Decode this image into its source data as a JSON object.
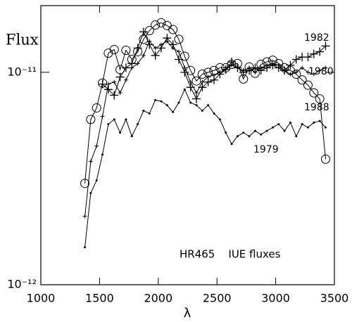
{
  "chart_data": {
    "type": "line",
    "y_label": "Flux",
    "x_label": "λ",
    "annotation": "HR465    IUE fluxes",
    "log_y": true,
    "color": "#000000",
    "xlim": [
      1000,
      3500
    ],
    "xticks": [
      1000,
      1500,
      2000,
      2500,
      3000,
      3500
    ],
    "ylim": [
      1e-12,
      2.06e-11
    ],
    "yticks": [
      {
        "value": 1e-12,
        "label": "10⁻¹²"
      },
      {
        "value": 1e-11,
        "label": "10⁻¹¹"
      }
    ],
    "x": [
      1375,
      1425,
      1475,
      1525,
      1575,
      1625,
      1675,
      1725,
      1775,
      1825,
      1875,
      1925,
      1975,
      2025,
      2075,
      2125,
      2175,
      2225,
      2275,
      2325,
      2375,
      2425,
      2475,
      2525,
      2575,
      2625,
      2675,
      2725,
      2775,
      2825,
      2875,
      2925,
      2975,
      3025,
      3075,
      3125,
      3175,
      3225,
      3275,
      3325,
      3375,
      3425
    ],
    "series": [
      {
        "name": "1982",
        "marker": "plus",
        "color": "#000000",
        "values": [
          null,
          null,
          null,
          8.8e-12,
          8.3e-12,
          7.8e-12,
          9.5e-12,
          1.05e-11,
          1.1e-11,
          1.3e-11,
          1.55e-11,
          1.35e-11,
          1.2e-11,
          1.3e-11,
          1.45e-11,
          1.35e-11,
          1.15e-11,
          1e-11,
          8.5e-12,
          7.5e-12,
          8.5e-12,
          9e-12,
          9.2e-12,
          9.8e-12,
          1.03e-11,
          1.12e-11,
          1.05e-11,
          1e-11,
          1.02e-11,
          1.05e-11,
          1.02e-11,
          1.05e-11,
          1.08e-11,
          1.05e-11,
          1.02e-11,
          1.08e-11,
          1.15e-11,
          1.18e-11,
          1.18e-11,
          1.22e-11,
          1.25e-11,
          1.33e-11
        ]
      },
      {
        "name": "1980",
        "marker": "plus-small",
        "color": "#000000",
        "values": [
          2.1e-12,
          3.8e-12,
          4.5e-12,
          6.2e-12,
          8.8e-12,
          9e-12,
          8e-12,
          9.2e-12,
          1.05e-11,
          1.1e-11,
          1.2e-11,
          1.4e-11,
          1.3e-11,
          1.35e-11,
          1.4e-11,
          1.3e-11,
          1.25e-11,
          1.05e-11,
          9e-12,
          8e-12,
          9e-12,
          9.5e-12,
          9.7e-12,
          1e-11,
          1.03e-11,
          1.08e-11,
          1.05e-11,
          1.02e-11,
          1.05e-11,
          1e-11,
          1.05e-11,
          1.08e-11,
          1.1e-11,
          1.08e-11,
          1.02e-11,
          9.8e-12,
          1e-11,
          1.05e-11,
          1e-11,
          9.8e-12,
          1.02e-11,
          1.05e-11
        ]
      },
      {
        "name": "1988",
        "marker": "circle",
        "color": "#000000",
        "values": [
          3e-12,
          6e-12,
          6.8e-12,
          8.9e-12,
          1.23e-11,
          1.28e-11,
          1.03e-11,
          1.27e-11,
          1.15e-11,
          1.25e-11,
          1.43e-11,
          1.57e-11,
          1.67e-11,
          1.71e-11,
          1.66e-11,
          1.59e-11,
          1.43e-11,
          1.19e-11,
          1.02e-11,
          9.1e-12,
          9.8e-12,
          1e-11,
          1.02e-11,
          1.05e-11,
          1.05e-11,
          1.09e-11,
          1.1e-11,
          9.3e-12,
          1.06e-11,
          9.9e-12,
          1.09e-11,
          1.12e-11,
          1.14e-11,
          1.1e-11,
          1.05e-11,
          1.02e-11,
          9.8e-12,
          9.2e-12,
          8.7e-12,
          8e-12,
          7.5e-12,
          3.9e-12
        ]
      },
      {
        "name": "1979",
        "marker": "dot",
        "color": "#000000",
        "values": [
          1.5e-12,
          2.7e-12,
          3.1e-12,
          4.1e-12,
          5.7e-12,
          6e-12,
          5.2e-12,
          6e-12,
          5e-12,
          5.7e-12,
          6.6e-12,
          6.4e-12,
          7.4e-12,
          7.3e-12,
          7e-12,
          6.5e-12,
          7.2e-12,
          8.3e-12,
          7.2e-12,
          7e-12,
          6.6e-12,
          7e-12,
          6.4e-12,
          6e-12,
          5.2e-12,
          4.6e-12,
          5e-12,
          5.2e-12,
          5e-12,
          5.3e-12,
          5.1e-12,
          5.3e-12,
          5.5e-12,
          5.7e-12,
          5.3e-12,
          5.8e-12,
          5e-12,
          5.7e-12,
          5.5e-12,
          5.8e-12,
          5.9e-12,
          5.5e-12
        ]
      }
    ]
  }
}
